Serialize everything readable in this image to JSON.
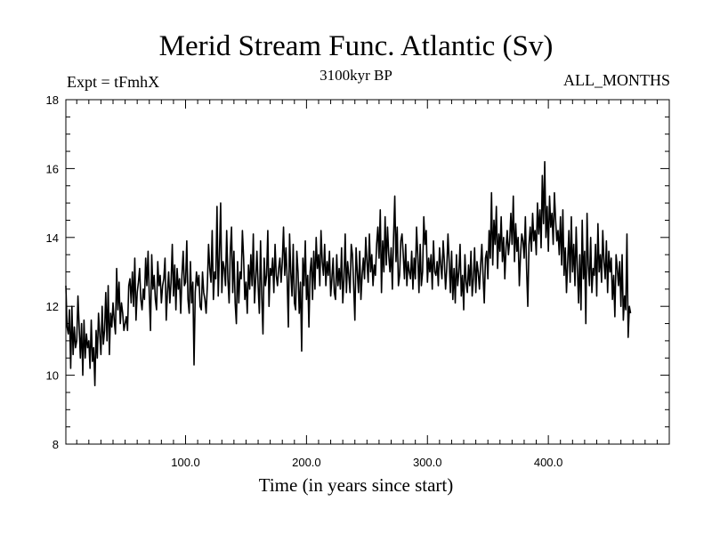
{
  "chart_data": {
    "type": "line",
    "title": "Merid Stream Func. Atlantic (Sv)",
    "subtitle": "3100kyr BP",
    "left_label": "Expt = tFmhX",
    "right_label": "ALL_MONTHS",
    "xlabel": "Time (in years since start)",
    "ylabel": "",
    "xlim": [
      1,
      500
    ],
    "ylim": [
      8,
      18
    ],
    "xticks": [
      100,
      200,
      300,
      400
    ],
    "xtick_labels": [
      "100.0",
      "200.0",
      "300.0",
      "400.0"
    ],
    "yticks": [
      8,
      10,
      12,
      14,
      16,
      18
    ],
    "ytick_labels": [
      "8",
      "10",
      "12",
      "14",
      "16",
      "18"
    ],
    "grid": false,
    "series": [
      {
        "name": "Merid Stream Func. Atlantic",
        "x_start": 1,
        "x_step": 1,
        "values": [
          12.6,
          11.4,
          11.2,
          11.9,
          10.2,
          12.0,
          10.6,
          11.4,
          10.8,
          11.0,
          12.3,
          11.4,
          10.5,
          11.5,
          10.0,
          11.6,
          10.5,
          11.2,
          10.8,
          11.0,
          10.2,
          11.6,
          10.4,
          10.8,
          9.7,
          11.3,
          10.5,
          11.8,
          11.2,
          10.6,
          12.0,
          10.9,
          11.3,
          12.4,
          11.0,
          12.6,
          10.6,
          11.8,
          11.4,
          12.1,
          11.6,
          11.2,
          13.1,
          11.9,
          12.7,
          11.5,
          12.1,
          11.8,
          11.3,
          11.5,
          11.7,
          11.3,
          12.6,
          12.8,
          12.1,
          13.0,
          12.0,
          13.4,
          11.6,
          12.4,
          12.7,
          13.1,
          12.2,
          11.9,
          12.5,
          12.2,
          13.4,
          12.6,
          13.6,
          12.3,
          11.3,
          13.5,
          12.5,
          12.9,
          12.2,
          11.9,
          13.3,
          12.6,
          12.9,
          12.1,
          12.6,
          12.8,
          13.4,
          11.6,
          12.4,
          13.0,
          12.1,
          12.7,
          13.8,
          12.3,
          13.2,
          11.9,
          13.1,
          12.5,
          12.8,
          11.8,
          12.9,
          13.6,
          12.6,
          12.7,
          13.9,
          12.2,
          11.8,
          13.3,
          12.1,
          12.7,
          10.3,
          12.4,
          13.0,
          12.6,
          12.9,
          12.0,
          11.9,
          13.0,
          12.4,
          12.2,
          11.8,
          12.6,
          13.8,
          13.1,
          12.7,
          14.2,
          12.2,
          13.0,
          12.8,
          14.9,
          12.3,
          13.5,
          15.0,
          12.4,
          13.3,
          13.1,
          12.6,
          14.2,
          12.8,
          12.1,
          13.6,
          14.3,
          12.4,
          13.6,
          12.1,
          11.5,
          13.3,
          12.1,
          13.0,
          12.8,
          14.2,
          13.4,
          12.2,
          12.7,
          11.8,
          13.2,
          12.5,
          13.5,
          12.6,
          14.1,
          12.1,
          12.8,
          13.6,
          12.6,
          11.8,
          13.9,
          12.3,
          11.2,
          13.4,
          12.6,
          12.9,
          14.2,
          12.0,
          13.1,
          12.9,
          13.4,
          12.4,
          13.8,
          12.9,
          12.6,
          13.1,
          13.4,
          12.7,
          13.3,
          14.3,
          12.9,
          13.7,
          12.8,
          11.4,
          14.1,
          13.0,
          12.3,
          13.8,
          12.1,
          11.9,
          13.6,
          13.0,
          11.8,
          12.7,
          10.7,
          13.4,
          12.6,
          13.9,
          12.2,
          12.9,
          11.4,
          13.0,
          13.4,
          12.2,
          13.6,
          12.5,
          14.0,
          13.1,
          13.5,
          12.6,
          14.2,
          13.3,
          12.9,
          13.8,
          12.6,
          13.3,
          12.9,
          13.6,
          12.3,
          12.8,
          13.4,
          12.4,
          12.2,
          13.5,
          12.6,
          13.1,
          12.5,
          13.7,
          12.1,
          12.8,
          14.1,
          12.4,
          13.3,
          12.9,
          12.4,
          13.8,
          13.5,
          12.6,
          11.6,
          13.7,
          13.0,
          12.4,
          13.6,
          12.2,
          12.9,
          13.4,
          12.8,
          14.0,
          13.3,
          12.7,
          14.1,
          13.0,
          13.5,
          12.6,
          13.2,
          12.9,
          13.8,
          14.3,
          13.4,
          14.8,
          12.4,
          13.9,
          13.0,
          14.6,
          13.2,
          14.3,
          13.5,
          13.0,
          13.7,
          12.5,
          14.0,
          15.2,
          13.3,
          14.3,
          12.6,
          12.9,
          13.9,
          14.1,
          13.5,
          12.8,
          13.8,
          12.6,
          13.3,
          13.0,
          12.8,
          13.6,
          12.5,
          13.4,
          12.8,
          14.3,
          13.5,
          12.4,
          13.8,
          12.6,
          13.0,
          14.6,
          13.8,
          14.2,
          12.7,
          13.4,
          13.0,
          13.5,
          12.5,
          13.9,
          13.0,
          12.9,
          13.3,
          12.6,
          13.7,
          13.2,
          12.8,
          13.9,
          13.3,
          12.5,
          13.1,
          14.1,
          13.3,
          12.4,
          13.6,
          12.2,
          13.1,
          12.1,
          13.5,
          12.6,
          13.0,
          13.8,
          12.3,
          12.9,
          11.9,
          13.5,
          12.7,
          12.4,
          13.2,
          12.6,
          13.6,
          12.3,
          12.8,
          13.7,
          12.4,
          13.3,
          13.0,
          12.5,
          13.2,
          13.8,
          12.9,
          12.1,
          13.4,
          13.6,
          12.8,
          14.2,
          13.4,
          15.3,
          13.2,
          14.5,
          13.8,
          14.9,
          13.1,
          14.1,
          13.6,
          14.6,
          13.3,
          14.0,
          12.8,
          13.7,
          14.2,
          13.5,
          13.9,
          14.7,
          13.8,
          15.2,
          13.3,
          14.4,
          13.6,
          14.0,
          12.6,
          13.5,
          14.1,
          13.9,
          13.4,
          14.6,
          13.1,
          12.0,
          13.8,
          14.3,
          13.6,
          14.7,
          13.9,
          14.2,
          13.5,
          15.0,
          14.1,
          14.8,
          13.7,
          15.8,
          14.4,
          16.2,
          14.0,
          14.9,
          13.6,
          15.2,
          14.3,
          14.7,
          13.8,
          15.3,
          14.5,
          13.9,
          14.2,
          13.5,
          14.6,
          13.2,
          14.8,
          12.9,
          13.7,
          12.4,
          13.3,
          14.2,
          12.7,
          14.6,
          13.0,
          13.8,
          12.6,
          14.3,
          13.1,
          12.1,
          13.5,
          11.9,
          14.5,
          12.8,
          13.6,
          11.5,
          14.7,
          13.2,
          12.6,
          14.0,
          12.4,
          13.1,
          12.9,
          13.8,
          12.3,
          14.4,
          13.0,
          13.5,
          12.7,
          14.2,
          13.3,
          12.8,
          13.9,
          12.4,
          13.6,
          13.0,
          13.4,
          12.2,
          12.9,
          11.7,
          13.5,
          13.1,
          12.6,
          13.3,
          12.0,
          13.5,
          11.6,
          12.3,
          11.9,
          14.1,
          11.1,
          12.0,
          11.8
        ]
      }
    ]
  }
}
